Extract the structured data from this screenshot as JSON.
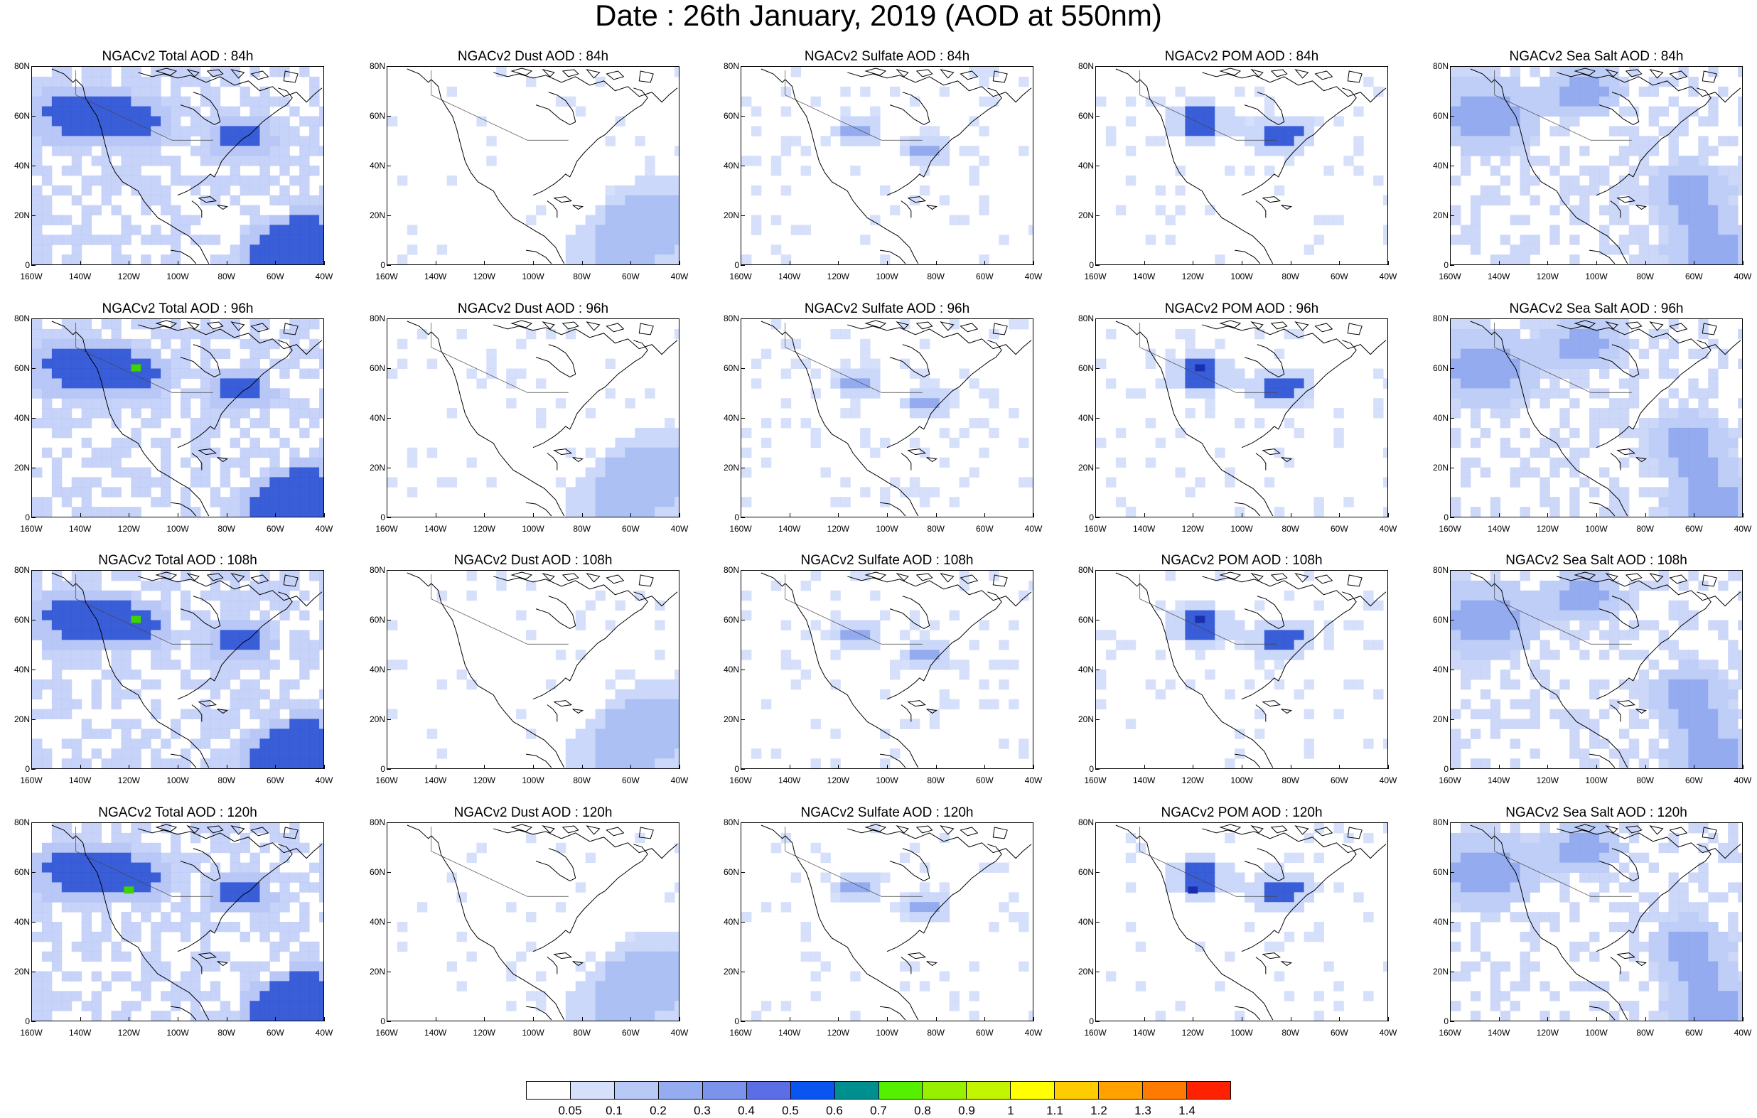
{
  "title": "Date : 26th January, 2019 (AOD at 550nm)",
  "lat_labels": [
    "80N",
    "60N",
    "40N",
    "20N",
    "0"
  ],
  "lon_labels": [
    "160W",
    "140W",
    "120W",
    "100W",
    "80W",
    "60W",
    "40W"
  ],
  "columns": [
    {
      "species": "Total",
      "fill": "#b4c4f6",
      "hot": "#2f55d6"
    },
    {
      "species": "Dust",
      "fill": "#c8d6fa",
      "hot": "#a8bdf3"
    },
    {
      "species": "Sulfate",
      "fill": "#c8d6fa",
      "hot": "#8ea6ee"
    },
    {
      "species": "POM",
      "fill": "#c8d6fa",
      "hot": "#2f55d6"
    },
    {
      "species": "Sea Salt",
      "fill": "#bccbf7",
      "hot": "#8ea6ee"
    }
  ],
  "panels": [
    [
      "NGACv2 Total AOD : 84h",
      "NGACv2 Dust AOD : 84h",
      "NGACv2 Sulfate AOD : 84h",
      "NGACv2 POM AOD : 84h",
      "NGACv2 Sea Salt AOD : 84h"
    ],
    [
      "NGACv2 Total AOD : 96h",
      "NGACv2 Dust AOD : 96h",
      "NGACv2 Sulfate AOD : 96h",
      "NGACv2 POM AOD : 96h",
      "NGACv2 Sea Salt AOD : 96h"
    ],
    [
      "NGACv2 Total AOD : 108h",
      "NGACv2 Dust AOD : 108h",
      "NGACv2 Sulfate AOD : 108h",
      "NGACv2 POM AOD : 108h",
      "NGACv2 Sea Salt AOD : 108h"
    ],
    [
      "NGACv2 Total AOD : 120h",
      "NGACv2 Dust AOD : 120h",
      "NGACv2 Sulfate AOD : 120h",
      "NGACv2 POM AOD : 120h",
      "NGACv2 Sea Salt  AOD : 120h"
    ]
  ],
  "colorbar": {
    "colors": [
      "#ffffff",
      "#d6e0fb",
      "#b8c8f7",
      "#96acf1",
      "#7c93ee",
      "#5b6ee6",
      "#0a55f0",
      "#008f8f",
      "#55f000",
      "#96f000",
      "#c3f500",
      "#ffff00",
      "#ffcc00",
      "#ffa200",
      "#ff7a00",
      "#ff2200"
    ],
    "labels": [
      "0.05",
      "0.1",
      "0.2",
      "0.3",
      "0.4",
      "0.5",
      "0.6",
      "0.7",
      "0.8",
      "0.9",
      "1",
      "1.1",
      "1.2",
      "1.3",
      "1.4"
    ]
  }
}
